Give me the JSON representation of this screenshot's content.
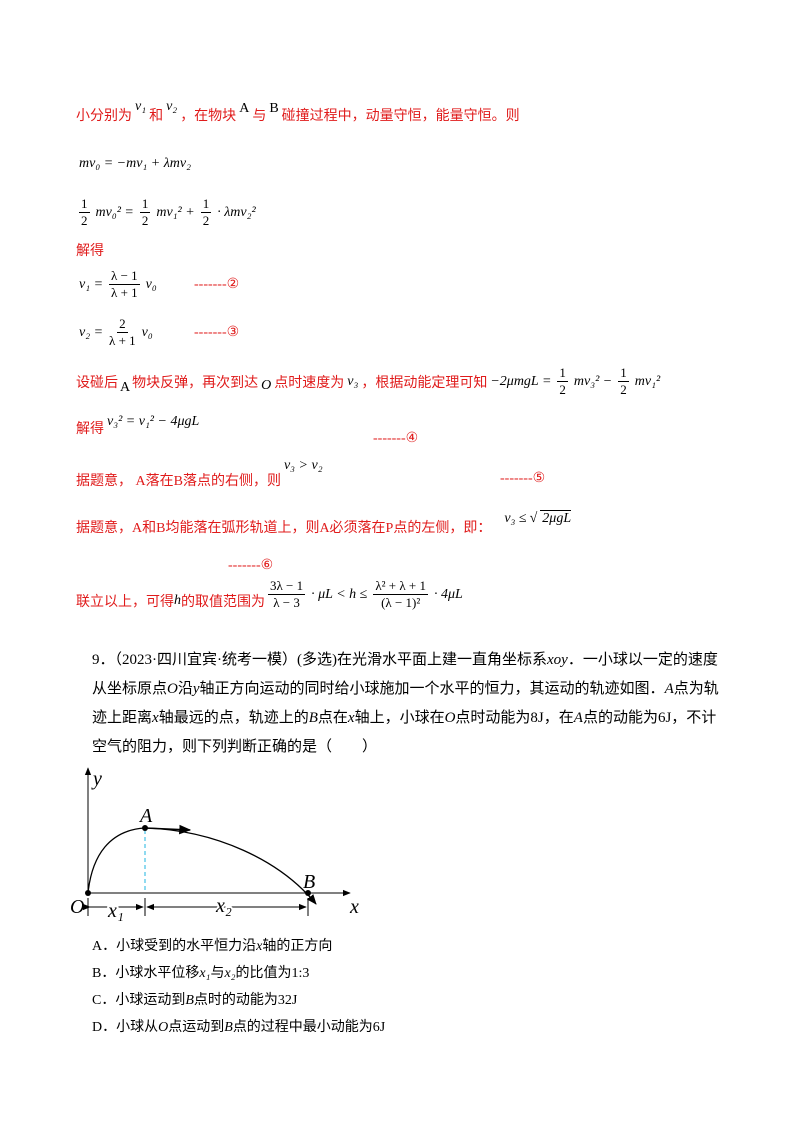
{
  "solution": {
    "intro": {
      "t1": "小分别为",
      "v1": "v₁",
      "t2": "和",
      "v2": "v₂",
      "t3": "，在物块",
      "a": "A",
      "t4": "与",
      "b": "B",
      "t5": "碰撞过程中，动量守恒，能量守恒。则"
    },
    "momentum_eq": "mv₀ = −mv₁ + λmv₂",
    "energy_eq": {
      "num": "1",
      "den": "2",
      "t1": "mv₀² =",
      "t2": "mv₁² +",
      "t3": "· λmv₂²"
    },
    "solve1": "解得",
    "v1_eq": {
      "lhs": "v₁ =",
      "num": "λ − 1",
      "den": "λ + 1",
      "rhs": "v₀",
      "mark": "-------②"
    },
    "v2_eq": {
      "lhs": "v₂ =",
      "num": "2",
      "den": "λ + 1",
      "rhs": "v₀",
      "mark": "-------③"
    },
    "rebound": {
      "t1": "设碰后",
      "a": "A",
      "t2": "物块反弹，再次到达",
      "o": "O",
      "t3": "点时速度为",
      "v3": "v₃",
      "t4": "，根据动能定理可知",
      "lhs": "−2μmgL =",
      "t5": "mv₃² −",
      "t6": "mv₁²"
    },
    "solve2": {
      "t": "解得",
      "eq": "v₃² = v₁² − 4μgL",
      "mark": "-------④"
    },
    "cond1": {
      "t": "据题意， A落在B落点的右侧，则",
      "eq": "v₃ > v₂",
      "mark": "-------⑤"
    },
    "cond2": {
      "t": "据题意，A和B均能落在弧形轨道上，则A必须落在P点的左侧，即：",
      "lhs": "v₃ ≤",
      "rad": "2μgL",
      "mark": "-------⑥"
    },
    "result": {
      "t": "联立以上，可得",
      "h": "h",
      "t2": "的取值范围为",
      "n1": "3λ − 1",
      "d1": "λ − 3",
      "m1": "· μL < h ≤",
      "n2": "λ² + λ + 1",
      "d2": "(λ − 1)²",
      "m2": "· 4μL"
    }
  },
  "question": {
    "number": "9．",
    "source": "（2023·四川宜宾·统考一模）",
    "text": [
      "(多选)在光滑水平面上建一直角坐标系",
      "xoy",
      "．一小球以一定的速度从坐标原点",
      "O",
      "沿",
      "y",
      "轴正方向运动的同时给小球施加一个水平的恒力，其运动的轨迹如图．",
      "A",
      "点为轨迹上距离",
      "x",
      "轴最远的点，轨迹上的",
      "B",
      "点在",
      "x",
      "轴上，小球在",
      "O",
      "点时动能为8J，在",
      "A",
      "点的动能为6J，不计空气的阻力，则下列判断正确的是（　　）"
    ],
    "figure": {
      "y": "y",
      "x": "x",
      "O": "O",
      "A": "A",
      "B": "B",
      "x1": "x₁",
      "x2": "x₂"
    },
    "options": [
      [
        "A．小球受到的水平恒力沿",
        "x",
        "轴的正方向"
      ],
      [
        "B．小球水平位移",
        "x₁",
        "与",
        "x₂",
        "的比值为1:3"
      ],
      [
        "C．小球运动到",
        "B",
        "点时的动能为32J"
      ],
      [
        "D．小球从",
        "O",
        "点运动到",
        "B",
        "点的过程中最小动能为6J"
      ]
    ]
  }
}
